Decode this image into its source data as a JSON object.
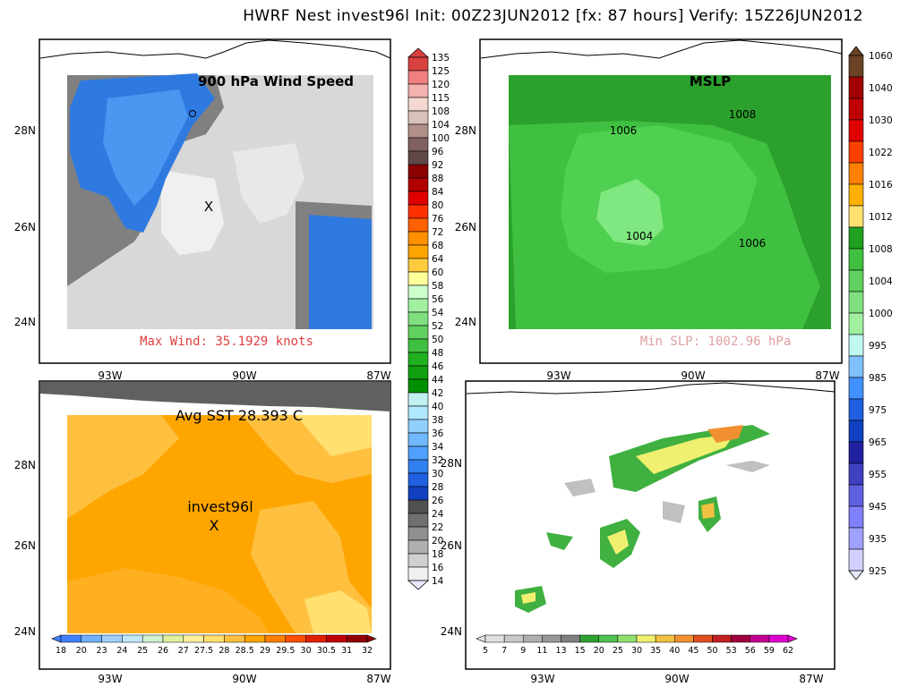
{
  "header": {
    "title": "HWRF Nest invest96l Init: 00Z23JUN2012 [fx: 87 hours] Verify: 15Z26JUN2012"
  },
  "panels": {
    "wind": {
      "label": "900 hPa Wind Speed",
      "annotation": "Max Wind: 35.1929 knots",
      "storm_marker": "X"
    },
    "mslp": {
      "label": "MSLP",
      "annotation": "Min SLP: 1002.96 hPa",
      "contours": [
        "1008",
        "1006",
        "1004",
        "1006"
      ]
    },
    "sst": {
      "label": "Avg SST 28.393 C",
      "storm_name": "invest96l",
      "storm_marker": "X"
    },
    "precip": {
      "label": ""
    }
  },
  "axes": {
    "lat_ticks": [
      "28N",
      "26N",
      "24N"
    ],
    "lon_ticks": [
      "93W",
      "90W",
      "87W"
    ]
  },
  "colorbars": {
    "wind": [
      "135",
      "125",
      "120",
      "115",
      "108",
      "104",
      "100",
      "96",
      "92",
      "88",
      "84",
      "80",
      "76",
      "72",
      "68",
      "64",
      "60",
      "58",
      "56",
      "54",
      "52",
      "50",
      "48",
      "46",
      "44",
      "42",
      "40",
      "38",
      "36",
      "34",
      "32",
      "30",
      "28",
      "26",
      "24",
      "22",
      "20",
      "18",
      "16",
      "14"
    ],
    "mslp": [
      "1060",
      "1040",
      "1030",
      "1022",
      "1016",
      "1012",
      "1008",
      "1004",
      "1000",
      "995",
      "985",
      "975",
      "965",
      "955",
      "945",
      "935",
      "925"
    ],
    "sst": [
      "18",
      "20",
      "23",
      "24",
      "25",
      "26",
      "27",
      "27.5",
      "28",
      "28.5",
      "29",
      "29.5",
      "30",
      "30.5",
      "31",
      "32"
    ],
    "precip": [
      "5",
      "7",
      "9",
      "11",
      "13",
      "15",
      "20",
      "25",
      "30",
      "35",
      "40",
      "45",
      "50",
      "53",
      "56",
      "59",
      "62"
    ]
  },
  "colors": {
    "wind_scale": [
      "#d94040",
      "#f08080",
      "#f5b0b0",
      "#f5d8d0",
      "#d9c0b8",
      "#b09088",
      "#806060",
      "#604848",
      "#8b0000",
      "#b00000",
      "#e00000",
      "#ff3000",
      "#ff6000",
      "#ff9000",
      "#ffa500",
      "#ffcc40",
      "#ffff99",
      "#ccffcc",
      "#a0f0a0",
      "#80e080",
      "#60d060",
      "#40c040",
      "#20b020",
      "#10a010",
      "#009000",
      "#c0f0f0",
      "#b0e8ff",
      "#90d0ff",
      "#70b8ff",
      "#50a0ff",
      "#3080f0",
      "#2060e0",
      "#1040c0",
      "#505050",
      "#707070",
      "#909090",
      "#b0b0b0",
      "#d0d0d0",
      "#f0f0f0"
    ],
    "mslp_scale": [
      "#6b4226",
      "#a00000",
      "#c00000",
      "#e00000",
      "#ff4000",
      "#ff8000",
      "#ffb000",
      "#ffe070",
      "#20a020",
      "#40c040",
      "#60d060",
      "#80e080",
      "#a0f0a0",
      "#c0f8f0",
      "#80c0ff",
      "#4090ff",
      "#2060e0",
      "#1040c0",
      "#2020a0",
      "#4040c0",
      "#6060e0",
      "#8080ff",
      "#a0a0ff",
      "#d0d0ff"
    ],
    "sst_scale": [
      "#4080ff",
      "#70b0ff",
      "#a0d0ff",
      "#c0e8ff",
      "#d0f0d0",
      "#e0f0a0",
      "#fff0a0",
      "#ffe070",
      "#ffc040",
      "#ffa500",
      "#ff8000",
      "#ff5000",
      "#e02000",
      "#c00000",
      "#900000"
    ],
    "precip_scale": [
      "#e0e0e0",
      "#c8c8c8",
      "#b0b0b0",
      "#989898",
      "#808080",
      "#30a030",
      "#50c050",
      "#90e070",
      "#f0f070",
      "#f0c040",
      "#f09030",
      "#e05020",
      "#c02020",
      "#a00040",
      "#c00090",
      "#e000d0"
    ]
  }
}
